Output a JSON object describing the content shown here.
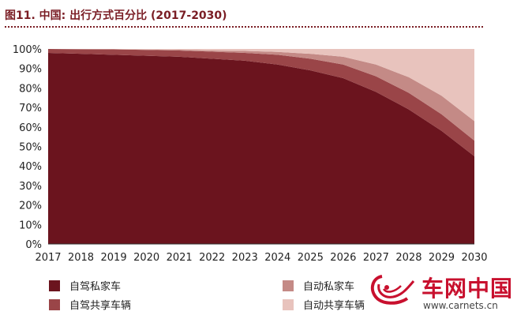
{
  "title": "图11. 中国: 出行方式百分比 (2017-2030)",
  "colors": {
    "title": "#7a1d24",
    "private_self_driven": "#6b141e",
    "shared_self_driven": "#9a4548",
    "private_autonomous": "#c48a86",
    "shared_autonomous": "#e8c3bd"
  },
  "watermark": {
    "brand_cn": "车网中国",
    "url": "www.carnets.cn"
  },
  "chart_data": {
    "type": "area",
    "stacked": true,
    "title": "图11. 中国: 出行方式百分比 (2017-2030)",
    "x": [
      "2017",
      "2018",
      "2019",
      "2020",
      "2021",
      "2022",
      "2023",
      "2024",
      "2025",
      "2026",
      "2027",
      "2028",
      "2029",
      "2030"
    ],
    "ylim": [
      0,
      100
    ],
    "yticks": [
      "0%",
      "10%",
      "20%",
      "30%",
      "40%",
      "50%",
      "60%",
      "70%",
      "80%",
      "90%",
      "100%"
    ],
    "xlabel": "",
    "ylabel": "",
    "grid": false,
    "legend": "bottom",
    "series": [
      {
        "name": "自驾私家车",
        "color": "#6b141e",
        "values": [
          98,
          97.5,
          97,
          96.5,
          96,
          95,
          94,
          92,
          89,
          85,
          78,
          69,
          58,
          45
        ]
      },
      {
        "name": "自驾共享车辆",
        "color": "#9a4548",
        "values": [
          2,
          2.4,
          2.8,
          3,
          3.2,
          3.6,
          4,
          5,
          6,
          7,
          8,
          8.5,
          8.5,
          8
        ]
      },
      {
        "name": "自动私家车",
        "color": "#c48a86",
        "values": [
          0,
          0,
          0,
          0.2,
          0.4,
          0.6,
          1,
          1.5,
          2.5,
          4,
          6,
          8,
          9.5,
          10
        ]
      },
      {
        "name": "自动共享车辆",
        "color": "#e8c3bd",
        "values": [
          0,
          0.1,
          0.2,
          0.3,
          0.4,
          0.8,
          1,
          1.5,
          2.5,
          4,
          8,
          14.5,
          24,
          37
        ]
      }
    ]
  }
}
